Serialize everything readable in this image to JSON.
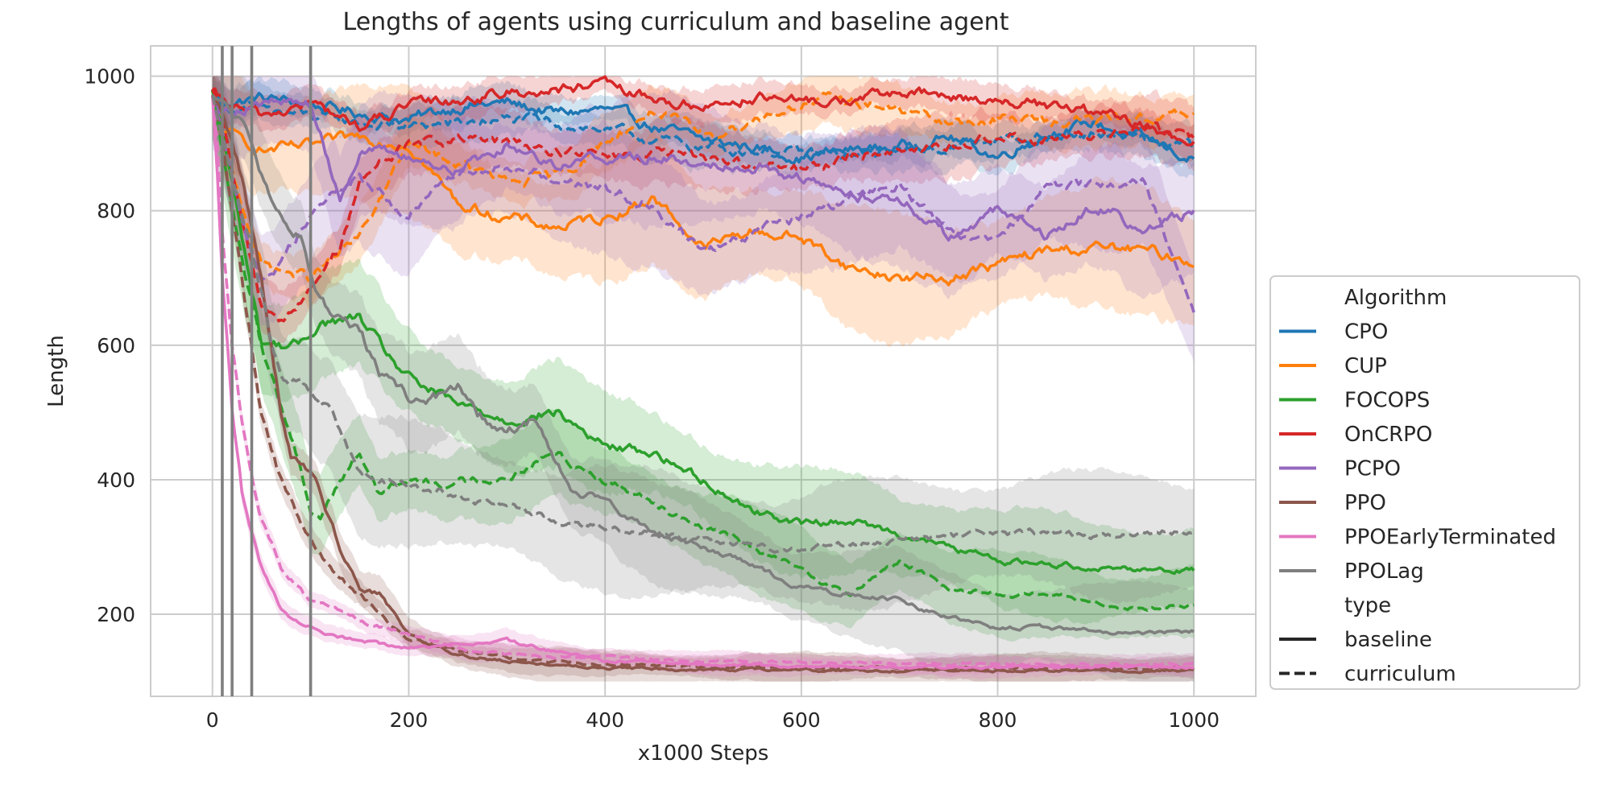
{
  "chart_data": {
    "type": "line",
    "title": "Lengths of agents using curriculum and baseline agent",
    "xlabel": "x1000 Steps",
    "ylabel": "Length",
    "xlim": [
      -63,
      1063
    ],
    "ylim": [
      78,
      1045
    ],
    "xticks": [
      0,
      200,
      400,
      600,
      800,
      1000
    ],
    "yticks": [
      200,
      400,
      600,
      800,
      1000
    ],
    "grid": true,
    "legend_placement": "right-outside",
    "vertical_lines": [
      10,
      20,
      40,
      100
    ],
    "vline_color": "#7f7f7f",
    "legend": {
      "hue_title": "Algorithm",
      "style_title": "type",
      "styles": [
        {
          "name": "baseline",
          "dash": "solid"
        },
        {
          "name": "curriculum",
          "dash": "dashed"
        }
      ]
    },
    "series": [
      {
        "name": "CPO",
        "color": "#1f77b4",
        "type": "baseline",
        "x": [
          0,
          10,
          50,
          100,
          150,
          200,
          250,
          300,
          350,
          400,
          450,
          500,
          550,
          600,
          650,
          700,
          750,
          800,
          850,
          900,
          950,
          1000
        ],
        "y": [
          975,
          960,
          968,
          958,
          945,
          935,
          955,
          960,
          945,
          950,
          925,
          905,
          895,
          880,
          890,
          895,
          910,
          880,
          915,
          930,
          905,
          875
        ],
        "band": 25
      },
      {
        "name": "CPO",
        "color": "#1f77b4",
        "type": "curriculum",
        "x": [
          0,
          10,
          50,
          100,
          150,
          200,
          250,
          300,
          350,
          400,
          450,
          500,
          550,
          600,
          650,
          700,
          750,
          800,
          850,
          900,
          950,
          1000
        ],
        "y": [
          975,
          955,
          950,
          940,
          930,
          925,
          930,
          935,
          930,
          920,
          905,
          895,
          890,
          885,
          880,
          890,
          895,
          905,
          910,
          915,
          905,
          895
        ],
        "band": 30
      },
      {
        "name": "CUP",
        "color": "#ff7f0e",
        "type": "baseline",
        "x": [
          0,
          10,
          50,
          100,
          150,
          200,
          250,
          300,
          350,
          400,
          450,
          500,
          550,
          600,
          650,
          700,
          750,
          800,
          850,
          900,
          950,
          1000
        ],
        "y": [
          975,
          920,
          890,
          895,
          910,
          900,
          810,
          790,
          775,
          790,
          820,
          745,
          770,
          760,
          715,
          700,
          700,
          720,
          740,
          745,
          740,
          725
        ],
        "band": 90
      },
      {
        "name": "CUP",
        "color": "#ff7f0e",
        "type": "curriculum",
        "x": [
          0,
          10,
          50,
          100,
          150,
          200,
          250,
          300,
          350,
          400,
          450,
          500,
          550,
          600,
          650,
          700,
          750,
          800,
          850,
          900,
          950,
          1000
        ],
        "y": [
          975,
          900,
          720,
          700,
          760,
          900,
          870,
          840,
          850,
          900,
          950,
          910,
          935,
          960,
          965,
          950,
          930,
          935,
          935,
          935,
          940,
          940
        ],
        "band": 40
      },
      {
        "name": "FOCOPS",
        "color": "#2ca02c",
        "type": "baseline",
        "x": [
          0,
          10,
          30,
          50,
          70,
          90,
          110,
          130,
          150,
          170,
          200,
          250,
          300,
          350,
          400,
          450,
          500,
          550,
          600,
          650,
          700,
          750,
          800,
          850,
          900,
          950,
          1000
        ],
        "y": [
          975,
          920,
          760,
          605,
          600,
          600,
          635,
          635,
          640,
          600,
          550,
          510,
          490,
          500,
          450,
          440,
          400,
          355,
          335,
          340,
          320,
          300,
          280,
          275,
          270,
          268,
          265
        ],
        "band": 75
      },
      {
        "name": "FOCOPS",
        "color": "#2ca02c",
        "type": "curriculum",
        "x": [
          0,
          10,
          30,
          50,
          70,
          90,
          100,
          110,
          130,
          150,
          170,
          200,
          250,
          300,
          350,
          400,
          450,
          500,
          550,
          600,
          650,
          700,
          750,
          800,
          850,
          900,
          950,
          1000
        ],
        "y": [
          975,
          890,
          720,
          600,
          510,
          420,
          355,
          345,
          400,
          440,
          380,
          400,
          395,
          405,
          440,
          400,
          370,
          330,
          300,
          265,
          230,
          280,
          240,
          230,
          230,
          215,
          210,
          215
        ],
        "band": 60
      },
      {
        "name": "OnCRPO",
        "color": "#d62728",
        "type": "baseline",
        "x": [
          0,
          10,
          50,
          100,
          150,
          200,
          250,
          300,
          350,
          400,
          450,
          500,
          550,
          600,
          650,
          700,
          750,
          800,
          850,
          900,
          950,
          1000
        ],
        "y": [
          975,
          960,
          940,
          960,
          925,
          955,
          965,
          975,
          980,
          985,
          965,
          955,
          970,
          960,
          965,
          975,
          970,
          965,
          955,
          945,
          925,
          900
        ],
        "band": 25
      },
      {
        "name": "OnCRPO",
        "color": "#d62728",
        "type": "curriculum",
        "x": [
          0,
          10,
          30,
          50,
          70,
          100,
          130,
          150,
          170,
          200,
          250,
          300,
          350,
          400,
          450,
          500,
          550,
          600,
          650,
          700,
          750,
          800,
          850,
          900,
          950,
          1000
        ],
        "y": [
          975,
          930,
          780,
          660,
          640,
          680,
          750,
          840,
          870,
          900,
          905,
          900,
          890,
          880,
          885,
          880,
          870,
          860,
          880,
          895,
          895,
          910,
          905,
          910,
          925,
          905
        ],
        "band": 45
      },
      {
        "name": "PCPO",
        "color": "#9467bd",
        "type": "baseline",
        "x": [
          0,
          10,
          50,
          100,
          130,
          150,
          200,
          250,
          300,
          350,
          400,
          450,
          500,
          550,
          600,
          650,
          700,
          750,
          800,
          850,
          900,
          950,
          1000
        ],
        "y": [
          975,
          950,
          960,
          960,
          820,
          890,
          880,
          860,
          900,
          870,
          880,
          880,
          870,
          870,
          850,
          820,
          820,
          760,
          800,
          760,
          810,
          770,
          800
        ],
        "band": 90
      },
      {
        "name": "PCPO",
        "color": "#9467bd",
        "type": "curriculum",
        "x": [
          0,
          10,
          30,
          50,
          70,
          100,
          150,
          200,
          250,
          300,
          350,
          400,
          450,
          500,
          550,
          600,
          650,
          700,
          750,
          800,
          850,
          900,
          950,
          1000
        ],
        "y": [
          975,
          920,
          780,
          700,
          720,
          800,
          850,
          790,
          860,
          870,
          850,
          830,
          810,
          740,
          770,
          790,
          820,
          840,
          770,
          760,
          840,
          840,
          840,
          660
        ],
        "band": 90
      },
      {
        "name": "PPO",
        "color": "#8c564b",
        "type": "baseline",
        "x": [
          0,
          10,
          30,
          50,
          60,
          70,
          80,
          90,
          100,
          110,
          130,
          150,
          170,
          200,
          250,
          300,
          400,
          500,
          600,
          700,
          800,
          900,
          1000
        ],
        "y": [
          975,
          950,
          850,
          700,
          600,
          500,
          430,
          420,
          410,
          380,
          300,
          240,
          230,
          170,
          140,
          130,
          120,
          118,
          117,
          116,
          116,
          116,
          116
        ],
        "band": 25
      },
      {
        "name": "PPO",
        "color": "#8c564b",
        "type": "curriculum",
        "x": [
          0,
          10,
          30,
          50,
          70,
          90,
          110,
          130,
          150,
          170,
          200,
          250,
          300,
          400,
          500,
          600,
          700,
          800,
          900,
          1000
        ],
        "y": [
          975,
          900,
          700,
          500,
          400,
          330,
          290,
          250,
          230,
          200,
          165,
          145,
          135,
          125,
          122,
          121,
          120,
          120,
          120,
          120
        ],
        "band": 20
      },
      {
        "name": "PPOEarlyTerminated",
        "color": "#e377c2",
        "type": "baseline",
        "x": [
          0,
          5,
          10,
          20,
          30,
          40,
          50,
          70,
          90,
          110,
          150,
          200,
          250,
          300,
          350,
          400,
          500,
          600,
          700,
          800,
          900,
          1000
        ],
        "y": [
          975,
          850,
          700,
          500,
          380,
          320,
          270,
          210,
          185,
          175,
          160,
          150,
          155,
          160,
          145,
          130,
          125,
          122,
          122,
          122,
          122,
          121
        ],
        "band": 15
      },
      {
        "name": "PPOEarlyTerminated",
        "color": "#e377c2",
        "type": "curriculum",
        "x": [
          0,
          5,
          10,
          20,
          30,
          40,
          50,
          70,
          100,
          150,
          200,
          250,
          300,
          350,
          400,
          500,
          600,
          700,
          800,
          900,
          1000
        ],
        "y": [
          975,
          900,
          780,
          600,
          480,
          400,
          340,
          270,
          220,
          190,
          170,
          150,
          140,
          135,
          135,
          130,
          128,
          127,
          126,
          126,
          126
        ],
        "band": 15
      },
      {
        "name": "PPOLag",
        "color": "#7f7f7f",
        "type": "baseline",
        "x": [
          0,
          10,
          30,
          50,
          70,
          90,
          100,
          120,
          150,
          170,
          200,
          230,
          250,
          270,
          300,
          330,
          350,
          370,
          400,
          450,
          500,
          550,
          600,
          650,
          700,
          750,
          800,
          850,
          900,
          950,
          1000
        ],
        "y": [
          975,
          960,
          930,
          850,
          790,
          760,
          700,
          650,
          620,
          560,
          520,
          525,
          545,
          500,
          470,
          490,
          420,
          380,
          370,
          320,
          300,
          270,
          240,
          230,
          220,
          195,
          180,
          180,
          175,
          172,
          175
        ],
        "band": 70
      },
      {
        "name": "PPOLag",
        "color": "#7f7f7f",
        "type": "curriculum",
        "x": [
          0,
          10,
          30,
          50,
          60,
          70,
          90,
          100,
          120,
          150,
          200,
          250,
          300,
          350,
          400,
          450,
          500,
          550,
          600,
          650,
          700,
          750,
          800,
          850,
          900,
          950,
          1000
        ],
        "y": [
          975,
          920,
          800,
          680,
          600,
          560,
          540,
          520,
          510,
          410,
          390,
          380,
          360,
          340,
          330,
          320,
          310,
          300,
          300,
          305,
          310,
          315,
          320,
          320,
          315,
          320,
          325
        ],
        "band": 90
      }
    ]
  }
}
